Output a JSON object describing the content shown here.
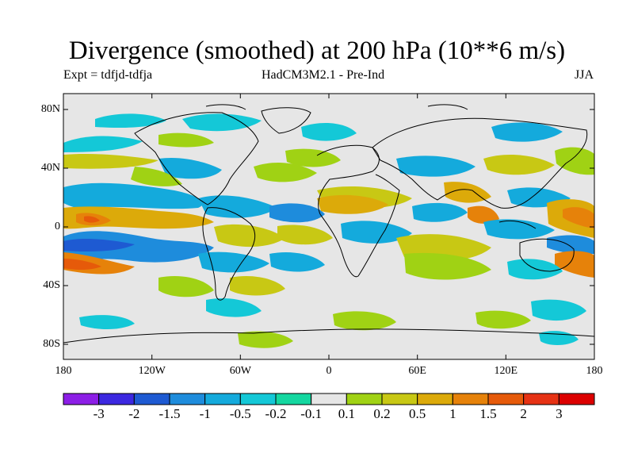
{
  "title": "Divergence (smoothed) at 200 hPa (10**6 m/s)",
  "experiment": "Expt = tdfjd-tdfja",
  "model": "HadCM3M2.1 - Pre-Ind",
  "season": "JJA",
  "lat_labels": [
    "80N",
    "40N",
    "0",
    "40S",
    "80S"
  ],
  "lon_labels": [
    "180",
    "120W",
    "60W",
    "0",
    "60E",
    "120E",
    "180"
  ],
  "colorbar": {
    "labels": [
      "-3",
      "-2",
      "-1.5",
      "-1",
      "-0.5",
      "-0.2",
      "-0.1",
      "0.1",
      "0.2",
      "0.5",
      "1",
      "1.5",
      "2",
      "3"
    ],
    "colors": [
      "#8c1ee6",
      "#3c28e0",
      "#1e5ad2",
      "#1e8cdc",
      "#14aadc",
      "#14c8d7",
      "#14d7a0",
      "#e6e6e6",
      "#a0d214",
      "#c8c814",
      "#dcaa0a",
      "#e6820a",
      "#e65a0a",
      "#e63214",
      "#dc0000"
    ]
  },
  "colors": {
    "neutral": "#e6e6e6",
    "coast": "#000000"
  }
}
